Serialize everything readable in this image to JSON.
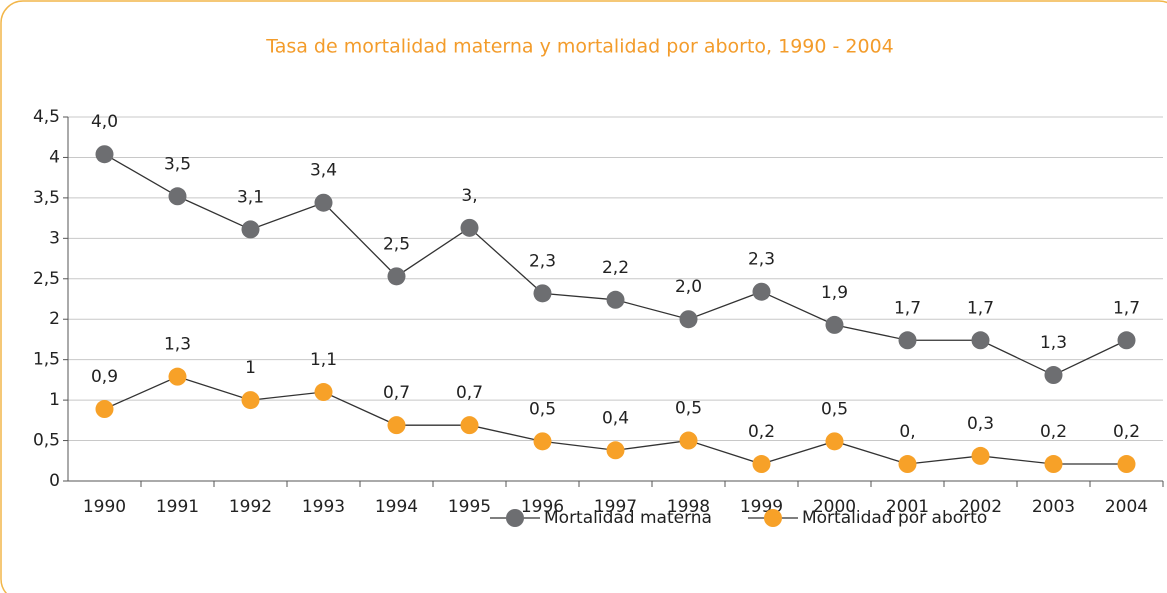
{
  "chart_data": {
    "type": "line",
    "title": "Tasa de mortalidad materna y mortalidad por aborto, 1990 - 2004",
    "categories": [
      "1990",
      "1991",
      "1992",
      "1993",
      "1994",
      "1995",
      "1996",
      "1997",
      "1998",
      "1999",
      "2000",
      "2001",
      "2002",
      "2003",
      "2004"
    ],
    "series": [
      {
        "name": "Mortalidad materna",
        "color": "#6d6e71",
        "values": [
          4.04,
          3.52,
          3.11,
          3.44,
          2.53,
          3.13,
          2.32,
          2.24,
          2.0,
          2.34,
          1.93,
          1.74,
          1.74,
          1.31,
          1.74
        ],
        "value_labels": [
          "4,0",
          "3,5",
          "3,1",
          "3,4",
          "2,5",
          "3,",
          "2,3",
          "2,2",
          "2,0",
          "2,3",
          "1,9",
          "1,7",
          "1,7",
          "1,3",
          "1,7"
        ]
      },
      {
        "name": "Mortalidad por aborto",
        "color": "#f7a128",
        "values": [
          0.89,
          1.29,
          1.0,
          1.1,
          0.69,
          0.69,
          0.49,
          0.38,
          0.5,
          0.21,
          0.49,
          0.21,
          0.31,
          0.21,
          0.21
        ],
        "value_labels": [
          "0,9",
          "1,3",
          "1",
          "1,1",
          "0,7",
          "0,7",
          "0,5",
          "0,4",
          "0,5",
          "0,2",
          "0,5",
          "0,",
          "0,3",
          "0,2",
          "0,2"
        ]
      }
    ],
    "ylim": [
      0,
      4.5
    ],
    "yticks": [
      0,
      {
        "value": 0.5,
        "label": "0,5"
      },
      1,
      {
        "value": 1.5,
        "label": "1,5"
      },
      2,
      {
        "value": 2.5,
        "label": "2,5"
      },
      3,
      {
        "value": 3.5,
        "label": "3,5"
      },
      4,
      {
        "value": 4.5,
        "label": "4,5"
      }
    ],
    "grid": true,
    "legend": "bottom"
  }
}
